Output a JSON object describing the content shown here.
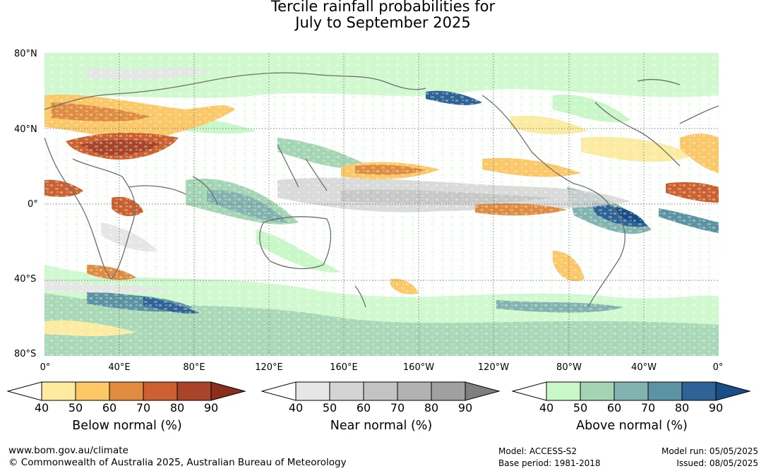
{
  "title": {
    "line1": "Tercile rainfall probabilities for",
    "line2": "July to September 2025"
  },
  "axes": {
    "lat_labels": [
      "80°N",
      "40°N",
      "0°",
      "40°S",
      "80°S"
    ],
    "lon_labels": [
      "0°",
      "40°E",
      "80°E",
      "120°E",
      "160°E",
      "160°W",
      "120°W",
      "80°W",
      "40°W",
      "0°"
    ],
    "grid": "dotted"
  },
  "colorbars": [
    {
      "label": "Below normal (%)",
      "ticks": [
        "40",
        "50",
        "60",
        "70",
        "80",
        "90"
      ],
      "colors": [
        "#ffffff",
        "#ffeba0",
        "#fdc765",
        "#e08b40",
        "#cd6030",
        "#a9442a",
        "#8b2f1c"
      ]
    },
    {
      "label": "Near normal (%)",
      "ticks": [
        "40",
        "50",
        "60",
        "70",
        "80",
        "90"
      ],
      "colors": [
        "#ffffff",
        "#e6e6e6",
        "#d4d4d4",
        "#c3c3c3",
        "#b2b2b2",
        "#a0a0a0",
        "#7f7f7f"
      ]
    },
    {
      "label": "Above normal (%)",
      "ticks": [
        "40",
        "50",
        "60",
        "70",
        "80",
        "90"
      ],
      "colors": [
        "#ffffff",
        "#c8f8c8",
        "#a3d4b4",
        "#83b3b0",
        "#5b92a4",
        "#2f6297",
        "#184d86"
      ]
    }
  ],
  "footer": {
    "website": "www.bom.gov.au/climate",
    "copyright": "© Commonwealth of Australia 2025, Australian Bureau of Meteorology",
    "model": "Model: ACCESS-S2",
    "base_period": "Base period: 1981-2018",
    "model_run": "Model run: 05/05/2025",
    "issued": "Issued: 08/05/2025"
  }
}
